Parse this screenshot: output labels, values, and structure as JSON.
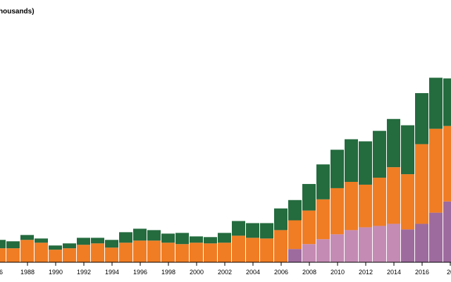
{
  "chart_data": {
    "type": "bar",
    "stacked": true,
    "ylabel_visible": "housands)",
    "x_tick_labels": [
      "86",
      "1988",
      "1990",
      "1992",
      "1994",
      "1996",
      "1998",
      "2000",
      "2002",
      "2004",
      "2006",
      "2008",
      "2010",
      "2012",
      "2014",
      "2016",
      "20"
    ],
    "years": [
      1986,
      1987,
      1988,
      1989,
      1990,
      1991,
      1992,
      1993,
      1994,
      1995,
      1996,
      1997,
      1998,
      1999,
      2000,
      2001,
      2002,
      2003,
      2004,
      2005,
      2006,
      2007,
      2008,
      2009,
      2010,
      2011,
      2012,
      2013,
      2014,
      2015,
      2016,
      2017,
      2018
    ],
    "ylim": [
      0,
      350
    ],
    "grid": false,
    "series": [
      {
        "color": "#9e6b9e",
        "alt_color": "#c48bb4",
        "values": [
          0,
          0,
          0,
          0,
          0,
          0,
          0,
          0,
          0,
          0,
          0,
          0,
          0,
          0,
          0,
          0,
          0,
          0,
          0,
          0,
          0,
          19,
          26,
          33,
          40,
          46,
          50,
          52,
          55,
          47,
          55,
          71,
          87
        ]
      },
      {
        "color": "#f07d23",
        "values": [
          20,
          20,
          32,
          28,
          18,
          20,
          25,
          27,
          21,
          28,
          31,
          31,
          28,
          26,
          28,
          27,
          28,
          38,
          35,
          34,
          46,
          41,
          48,
          57,
          66,
          69,
          61,
          69,
          81,
          79,
          114,
          120,
          108
        ]
      },
      {
        "color": "#246b3e",
        "values": [
          12,
          10,
          7,
          6,
          6,
          7,
          10,
          8,
          11,
          15,
          17,
          15,
          13,
          16,
          9,
          9,
          14,
          21,
          21,
          22,
          31,
          29,
          38,
          50,
          55,
          61,
          62,
          67,
          69,
          70,
          73,
          73,
          68
        ]
      }
    ]
  }
}
